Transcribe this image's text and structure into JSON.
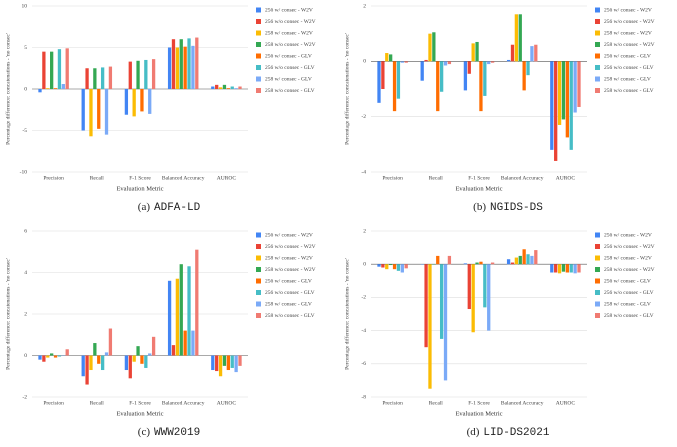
{
  "chart_data": [
    {
      "type": "bar",
      "caption_tag": "(a)",
      "caption": "ADFA-LD",
      "x_label": "Evaluation Metric",
      "y_label": "Percentage difference: concatenations - 'no consec'",
      "categories": [
        "Precision",
        "Recall",
        "F-1 Score",
        "Balanced Accuracy",
        "AUROC"
      ],
      "ylim": [
        -10,
        10
      ],
      "yticks": [
        -10,
        -5,
        0,
        5,
        10
      ],
      "grid": true,
      "series": [
        {
          "name": "256 w/ consec - W2V",
          "color": "#4285f4",
          "values": [
            -0.4,
            -5.0,
            -3.1,
            5.0,
            0.3
          ]
        },
        {
          "name": "256 w/o consec - W2V",
          "color": "#ea4335",
          "values": [
            4.5,
            2.5,
            3.3,
            6.0,
            0.5
          ]
        },
        {
          "name": "258 w/ consec - W2V",
          "color": "#fbbc04",
          "values": [
            0.1,
            -5.7,
            -3.3,
            5.0,
            0.2
          ]
        },
        {
          "name": "258 w/o consec - W2V",
          "color": "#34a853",
          "values": [
            4.5,
            2.5,
            3.4,
            6.0,
            0.5
          ]
        },
        {
          "name": "256 w/ consec - GLV",
          "color": "#ff6d01",
          "values": [
            0.1,
            -4.8,
            -2.7,
            5.1,
            0.1
          ]
        },
        {
          "name": "256 w/o consec - GLV",
          "color": "#46bdc6",
          "values": [
            4.8,
            2.6,
            3.5,
            6.1,
            0.3
          ]
        },
        {
          "name": "258 w/ consec - GLV",
          "color": "#7baaf7",
          "values": [
            0.6,
            -5.5,
            -3.0,
            5.2,
            0.1
          ]
        },
        {
          "name": "258 w/o consec - GLV",
          "color": "#f07b72",
          "values": [
            4.9,
            2.7,
            3.6,
            6.2,
            0.3
          ]
        }
      ]
    },
    {
      "type": "bar",
      "caption_tag": "(b)",
      "caption": "NGIDS-DS",
      "x_label": "Evaluation Metric",
      "y_label": "Percentage difference: concatenations - 'no consec'",
      "categories": [
        "Precision",
        "Recall",
        "F-1 Score",
        "Balanced Accuracy",
        "AUROC"
      ],
      "ylim": [
        -4,
        2
      ],
      "yticks": [
        -4,
        -2,
        0,
        2
      ],
      "grid": true,
      "series": [
        {
          "name": "256 w/ consec - W2V",
          "color": "#4285f4",
          "values": [
            -1.5,
            -0.7,
            -1.05,
            0.05,
            -3.2
          ]
        },
        {
          "name": "256 w/o consec - W2V",
          "color": "#ea4335",
          "values": [
            -1.0,
            0.05,
            -0.45,
            0.6,
            -3.6
          ]
        },
        {
          "name": "258 w/ consec - W2V",
          "color": "#fbbc04",
          "values": [
            0.3,
            1.0,
            0.65,
            1.7,
            -2.3
          ]
        },
        {
          "name": "258 w/o consec - W2V",
          "color": "#34a853",
          "values": [
            0.25,
            1.05,
            0.7,
            1.7,
            -2.1
          ]
        },
        {
          "name": "256 w/ consec - GLV",
          "color": "#ff6d01",
          "values": [
            -1.8,
            -1.8,
            -1.8,
            -1.05,
            -2.75
          ]
        },
        {
          "name": "256 w/o consec - GLV",
          "color": "#46bdc6",
          "values": [
            -1.35,
            -1.1,
            -1.25,
            -0.5,
            -3.2
          ]
        },
        {
          "name": "258 w/ consec - GLV",
          "color": "#7baaf7",
          "values": [
            -0.05,
            -0.15,
            -0.1,
            0.55,
            -1.85
          ]
        },
        {
          "name": "258 w/o consec - GLV",
          "color": "#f07b72",
          "values": [
            -0.05,
            -0.1,
            -0.05,
            0.6,
            -1.65
          ]
        }
      ]
    },
    {
      "type": "bar",
      "caption_tag": "(c)",
      "caption": "WWW2019",
      "x_label": "Evaluation Metric",
      "y_label": "Percentage difference: concatenations - 'no consec'",
      "categories": [
        "Precision",
        "Recall",
        "F-1 Score",
        "Balanced Accuracy",
        "AUROC"
      ],
      "ylim": [
        -2,
        6
      ],
      "yticks": [
        -2,
        0,
        2,
        4,
        6
      ],
      "grid": true,
      "series": [
        {
          "name": "256 w/ consec - W2V",
          "color": "#4285f4",
          "values": [
            -0.2,
            -1.0,
            -0.7,
            3.6,
            -0.7
          ]
        },
        {
          "name": "256 w/o consec - W2V",
          "color": "#ea4335",
          "values": [
            -0.3,
            -1.4,
            -1.1,
            0.5,
            -0.75
          ]
        },
        {
          "name": "258 w/ consec - W2V",
          "color": "#fbbc04",
          "values": [
            -0.1,
            -0.7,
            -0.3,
            3.7,
            -1.0
          ]
        },
        {
          "name": "258 w/o consec - W2V",
          "color": "#34a853",
          "values": [
            0.1,
            0.6,
            0.45,
            4.4,
            -0.5
          ]
        },
        {
          "name": "256 w/ consec - GLV",
          "color": "#ff6d01",
          "values": [
            -0.1,
            -0.4,
            -0.4,
            1.2,
            -0.7
          ]
        },
        {
          "name": "256 w/o consec - GLV",
          "color": "#46bdc6",
          "values": [
            -0.05,
            -0.7,
            -0.6,
            4.3,
            -0.6
          ]
        },
        {
          "name": "258 w/ consec - GLV",
          "color": "#7baaf7",
          "values": [
            0,
            0.15,
            0.1,
            1.2,
            -0.8
          ]
        },
        {
          "name": "258 w/o consec - GLV",
          "color": "#f07b72",
          "values": [
            0.3,
            1.3,
            0.9,
            5.1,
            -0.5
          ]
        }
      ]
    },
    {
      "type": "bar",
      "caption_tag": "(d)",
      "caption": "LID-DS2021",
      "x_label": "Evaluation Metric",
      "y_label": "Percentage difference: concatenations - 'no consec'",
      "categories": [
        "Precision",
        "Recall",
        "F-1 Score",
        "Balanced Accuracy",
        "AUROC"
      ],
      "ylim": [
        -8,
        2
      ],
      "yticks": [
        -8,
        -6,
        -4,
        -2,
        0,
        2
      ],
      "grid": true,
      "series": [
        {
          "name": "256 w/ consec - W2V",
          "color": "#4285f4",
          "values": [
            -0.15,
            0,
            0.05,
            0.3,
            -0.5
          ]
        },
        {
          "name": "256 w/o consec - W2V",
          "color": "#ea4335",
          "values": [
            -0.2,
            -5.0,
            -2.7,
            0.1,
            -0.5
          ]
        },
        {
          "name": "258 w/ consec - W2V",
          "color": "#fbbc04",
          "values": [
            -0.3,
            -7.5,
            -4.1,
            0.4,
            -0.55
          ]
        },
        {
          "name": "258 w/o consec - W2V",
          "color": "#34a853",
          "values": [
            -0.05,
            0,
            0.1,
            0.5,
            -0.45
          ]
        },
        {
          "name": "256 w/ consec - GLV",
          "color": "#ff6d01",
          "values": [
            -0.3,
            0.5,
            0.15,
            0.9,
            -0.5
          ]
        },
        {
          "name": "256 w/o consec - GLV",
          "color": "#46bdc6",
          "values": [
            -0.4,
            -4.5,
            -2.6,
            0.6,
            -0.5
          ]
        },
        {
          "name": "258 w/ consec - GLV",
          "color": "#7baaf7",
          "values": [
            -0.5,
            -7.0,
            -4.0,
            0.5,
            -0.55
          ]
        },
        {
          "name": "258 w/o consec - GLV",
          "color": "#f07b72",
          "values": [
            -0.25,
            0.5,
            0.1,
            0.85,
            -0.5
          ]
        }
      ]
    }
  ]
}
